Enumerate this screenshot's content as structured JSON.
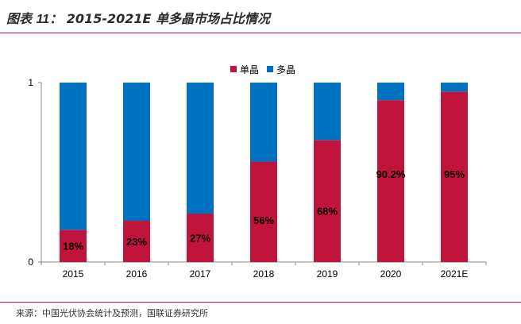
{
  "header": {
    "title_prefix": "图表",
    "title_number": "11：",
    "title_text": "2015-2021E 单多晶市场占比情况"
  },
  "source": "来源：中国光伏协会统计及预测，国联证券研究所",
  "colors": {
    "mono": "#c0143c",
    "multi": "#0070c0",
    "rule": "#c0143c"
  },
  "chart_data": {
    "type": "bar",
    "stacked": true,
    "categories": [
      "2015",
      "2016",
      "2017",
      "2018",
      "2019",
      "2020",
      "2021E"
    ],
    "series": [
      {
        "name": "单晶",
        "values": [
          0.18,
          0.23,
          0.27,
          0.56,
          0.68,
          0.902,
          0.95
        ],
        "labels": [
          "18%",
          "23%",
          "27%",
          "56%",
          "68%",
          "90.2%",
          "95%"
        ]
      },
      {
        "name": "多晶",
        "values": [
          0.82,
          0.77,
          0.73,
          0.44,
          0.32,
          0.098,
          0.05
        ]
      }
    ],
    "y_ticks": [
      "0",
      "1"
    ],
    "ylim": [
      0,
      1
    ],
    "legend": "top-center",
    "grid": false
  }
}
